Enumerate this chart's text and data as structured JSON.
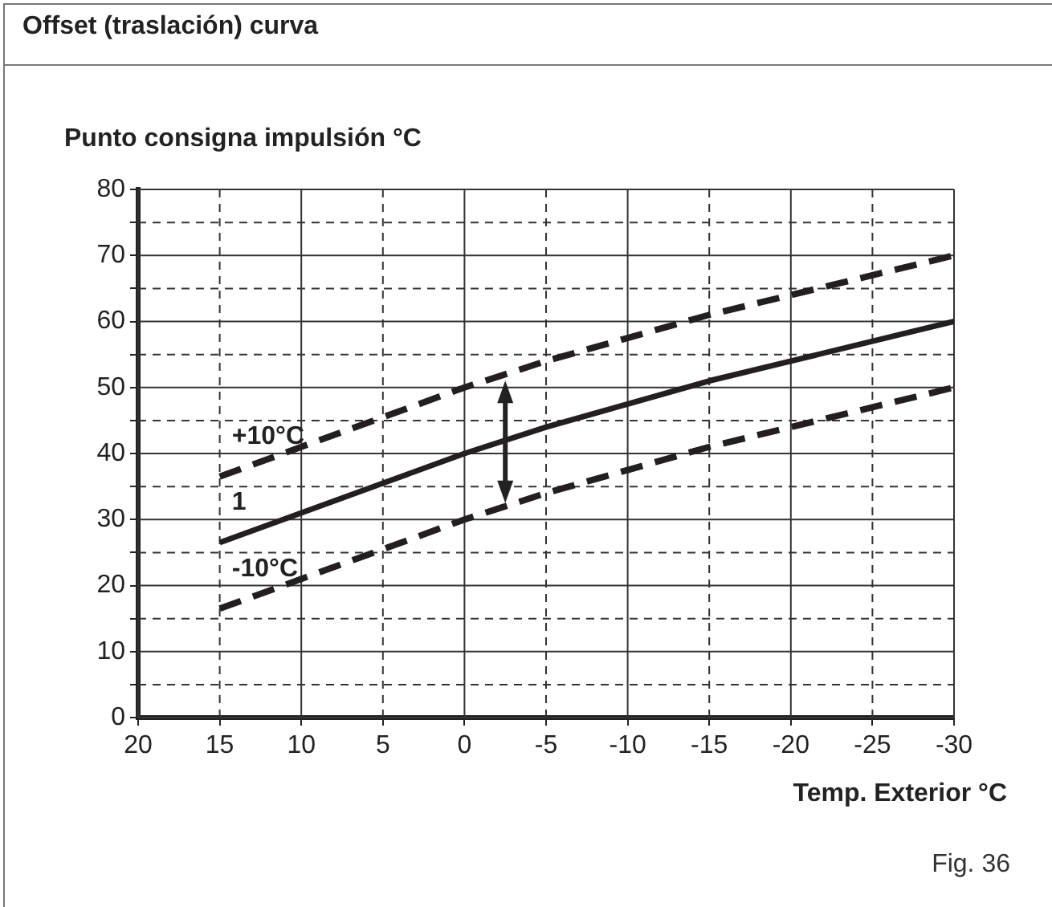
{
  "chart_data": {
    "type": "line",
    "title": "Offset (traslación) curva",
    "ylabel": "Punto consigna impulsión °C",
    "xlabel": "Temp. Exterior °C",
    "x": [
      15,
      10,
      5,
      0,
      -5,
      -10,
      -15,
      -20,
      -25,
      -30
    ],
    "series": [
      {
        "name": "+10°C",
        "color": "#231f20",
        "line_style": "dashed",
        "values": [
          36.5,
          41,
          45.5,
          50,
          54,
          57.5,
          61,
          64,
          67,
          70
        ]
      },
      {
        "name": "1",
        "color": "#231f20",
        "line_style": "solid",
        "values": [
          26.5,
          31,
          35.5,
          40,
          44,
          47.5,
          51,
          54,
          57,
          60
        ]
      },
      {
        "name": "-10°C",
        "color": "#231f20",
        "line_style": "dashed",
        "values": [
          16.5,
          21,
          25.5,
          30,
          34,
          37.5,
          41,
          44,
          47,
          50
        ]
      }
    ],
    "xlim": [
      20,
      -30
    ],
    "xticks": [
      20,
      15,
      10,
      5,
      0,
      -5,
      -10,
      -15,
      -20,
      -25,
      -30
    ],
    "ylim": [
      0,
      80
    ],
    "yticks": [
      0,
      {
        "value": 5,
        "label": null
      },
      10,
      {
        "value": 15,
        "label": null
      },
      20,
      {
        "value": 25,
        "label": null
      },
      30,
      {
        "value": 35,
        "label": null
      },
      40,
      {
        "value": 45,
        "label": null
      },
      50,
      {
        "value": 55,
        "label": null
      },
      60,
      {
        "value": 65,
        "label": null
      },
      70,
      {
        "value": 75,
        "label": null
      },
      80
    ],
    "grid": true,
    "legend": false,
    "marker": "none",
    "annotations": [
      "Fig. 36"
    ]
  }
}
